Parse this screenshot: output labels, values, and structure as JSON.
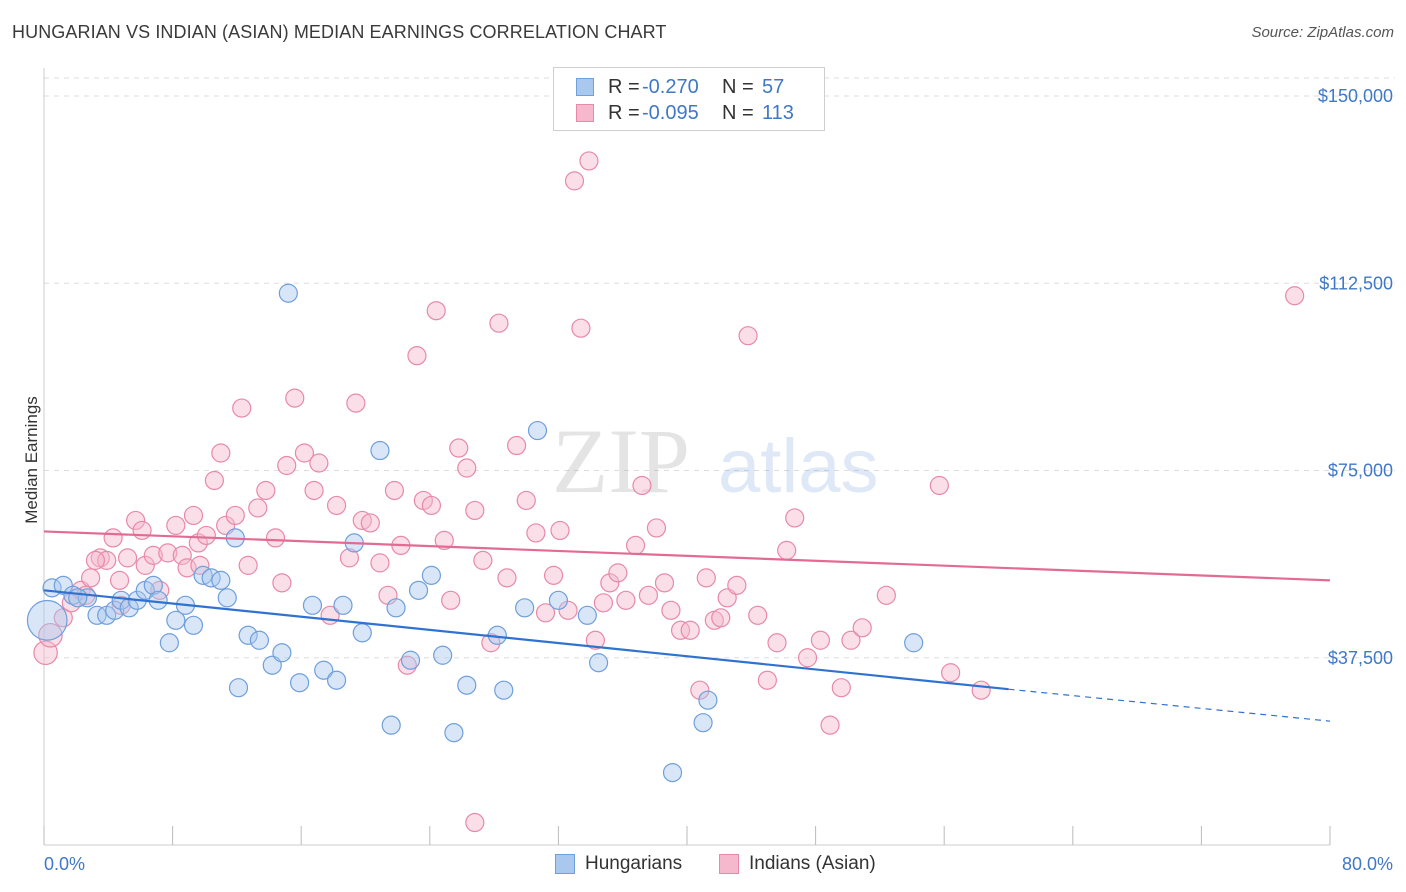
{
  "title": "HUNGARIAN VS INDIAN (ASIAN) MEDIAN EARNINGS CORRELATION CHART",
  "source": "Source: ZipAtlas.com",
  "watermark": {
    "zip": "ZIP",
    "atlas": "atlas"
  },
  "colors": {
    "blue_fill": "#a9c8ee",
    "blue_stroke": "#6f9fdc",
    "blue_line": "#2f72cf",
    "pink_fill": "#f5b8cc",
    "pink_stroke": "#e889a8",
    "pink_line": "#e26b94",
    "tick_text": "#3f78c9",
    "grid": "#dddddd"
  },
  "legend": {
    "rows": [
      {
        "r_label": "R =",
        "r_value": "-0.270",
        "n_label": "N =",
        "n_value": "57"
      },
      {
        "r_label": "R =",
        "r_value": "-0.095",
        "n_label": "N =",
        "n_value": "113"
      }
    ]
  },
  "bottom_legend": {
    "series1": "Hungarians",
    "series2": "Indians (Asian)"
  },
  "chart_data": {
    "type": "scatter",
    "title": "HUNGARIAN VS INDIAN (ASIAN) MEDIAN EARNINGS CORRELATION CHART",
    "xlabel": "",
    "ylabel": "Median Earnings",
    "xlim": [
      0,
      80
    ],
    "ylim": [
      0,
      152000
    ],
    "x_tick_labels": [
      "0.0%",
      "80.0%"
    ],
    "y_ticks": [
      37500,
      75000,
      112500,
      150000
    ],
    "y_tick_labels": [
      "$37,500",
      "$75,000",
      "$112,500",
      "$150,000"
    ],
    "grid": true,
    "series": [
      {
        "name": "Hungarians",
        "r": -0.27,
        "n": 57,
        "trend": {
          "x0": 0,
          "y0": 51000,
          "x1": 60,
          "y1": 31200,
          "dash_to_x": 80,
          "dash_to_y": 24800
        },
        "points": [
          [
            0.2,
            45000,
            2.2
          ],
          [
            0.5,
            51500,
            1
          ],
          [
            1.2,
            52000,
            1
          ],
          [
            1.8,
            50000,
            1
          ],
          [
            2.7,
            49500,
            1
          ],
          [
            3.3,
            46000,
            1
          ],
          [
            3.9,
            46000,
            1
          ],
          [
            4.4,
            47000,
            1
          ],
          [
            4.8,
            49000,
            1
          ],
          [
            5.3,
            47500,
            1
          ],
          [
            5.8,
            49000,
            1
          ],
          [
            6.3,
            51000,
            1
          ],
          [
            6.8,
            52000,
            1
          ],
          [
            7.1,
            49000,
            1
          ],
          [
            7.8,
            40500,
            1
          ],
          [
            8.2,
            45000,
            1
          ],
          [
            8.8,
            48000,
            1
          ],
          [
            9.3,
            44000,
            1
          ],
          [
            9.9,
            54000,
            1
          ],
          [
            10.4,
            53500,
            1
          ],
          [
            11.0,
            53000,
            1
          ],
          [
            11.4,
            49500,
            1
          ],
          [
            11.9,
            61500,
            1
          ],
          [
            12.1,
            31500,
            1
          ],
          [
            12.7,
            42000,
            1
          ],
          [
            13.4,
            41000,
            1
          ],
          [
            14.2,
            36000,
            1
          ],
          [
            14.8,
            38500,
            1
          ],
          [
            15.2,
            110500,
            1
          ],
          [
            15.9,
            32500,
            1
          ],
          [
            16.7,
            48000,
            1
          ],
          [
            17.4,
            35000,
            1
          ],
          [
            18.2,
            33000,
            1
          ],
          [
            18.6,
            48000,
            1
          ],
          [
            19.3,
            60500,
            1
          ],
          [
            19.8,
            42500,
            1
          ],
          [
            20.9,
            79000,
            1
          ],
          [
            21.6,
            24000,
            1
          ],
          [
            21.9,
            47500,
            1
          ],
          [
            22.8,
            37000,
            1
          ],
          [
            23.3,
            51000,
            1
          ],
          [
            24.1,
            54000,
            1
          ],
          [
            24.8,
            38000,
            1
          ],
          [
            25.5,
            22500,
            1
          ],
          [
            26.3,
            32000,
            1
          ],
          [
            28.2,
            42000,
            1
          ],
          [
            28.6,
            31000,
            1
          ],
          [
            29.9,
            47500,
            1
          ],
          [
            30.7,
            83000,
            1
          ],
          [
            32.0,
            49000,
            1
          ],
          [
            33.8,
            46000,
            1
          ],
          [
            34.5,
            36500,
            1
          ],
          [
            39.1,
            14500,
            1
          ],
          [
            41.0,
            24500,
            1
          ],
          [
            41.3,
            29000,
            1
          ],
          [
            54.1,
            40500,
            1
          ],
          [
            2.1,
            49500,
            1
          ]
        ]
      },
      {
        "name": "Indians (Asian)",
        "r": -0.095,
        "n": 113,
        "trend": {
          "x0": 0,
          "y0": 62800,
          "x1": 80,
          "y1": 53000
        },
        "points": [
          [
            0.1,
            38500,
            1.3
          ],
          [
            0.4,
            42000,
            1.3
          ],
          [
            1.2,
            45500,
            1
          ],
          [
            1.7,
            48500,
            1
          ],
          [
            2.3,
            51000,
            1
          ],
          [
            2.9,
            53500,
            1
          ],
          [
            3.5,
            57500,
            1
          ],
          [
            3.9,
            57000,
            1
          ],
          [
            4.3,
            61500,
            1
          ],
          [
            4.7,
            53000,
            1
          ],
          [
            5.2,
            57500,
            1
          ],
          [
            5.7,
            65000,
            1
          ],
          [
            6.3,
            56000,
            1
          ],
          [
            6.8,
            58000,
            1
          ],
          [
            7.2,
            51000,
            1
          ],
          [
            7.7,
            58500,
            1
          ],
          [
            8.2,
            64000,
            1
          ],
          [
            8.6,
            58000,
            1
          ],
          [
            9.3,
            66000,
            1
          ],
          [
            9.6,
            60500,
            1
          ],
          [
            10.1,
            62000,
            1
          ],
          [
            10.6,
            73000,
            1
          ],
          [
            11.0,
            78500,
            1
          ],
          [
            11.3,
            64000,
            1
          ],
          [
            11.9,
            66000,
            1
          ],
          [
            12.3,
            87500,
            1
          ],
          [
            12.7,
            56000,
            1
          ],
          [
            13.3,
            67500,
            1
          ],
          [
            13.8,
            71000,
            1
          ],
          [
            14.4,
            61500,
            1
          ],
          [
            14.8,
            52500,
            1
          ],
          [
            15.1,
            76000,
            1
          ],
          [
            15.6,
            89500,
            1
          ],
          [
            16.2,
            78500,
            1
          ],
          [
            16.8,
            71000,
            1
          ],
          [
            17.1,
            76500,
            1
          ],
          [
            17.8,
            46000,
            1
          ],
          [
            18.2,
            68000,
            1
          ],
          [
            19.0,
            57500,
            1
          ],
          [
            19.4,
            88500,
            1
          ],
          [
            19.8,
            65000,
            1
          ],
          [
            20.3,
            64500,
            1
          ],
          [
            20.9,
            56500,
            1
          ],
          [
            21.4,
            50000,
            1
          ],
          [
            21.8,
            71000,
            1
          ],
          [
            22.2,
            60000,
            1
          ],
          [
            22.6,
            36000,
            1
          ],
          [
            23.2,
            98000,
            1
          ],
          [
            23.6,
            69000,
            1
          ],
          [
            24.1,
            68000,
            1
          ],
          [
            24.4,
            107000,
            1
          ],
          [
            24.9,
            61000,
            1
          ],
          [
            25.3,
            49000,
            1
          ],
          [
            25.8,
            79500,
            1
          ],
          [
            26.3,
            75500,
            1
          ],
          [
            26.8,
            67000,
            1
          ],
          [
            27.3,
            57000,
            1
          ],
          [
            27.8,
            40500,
            1
          ],
          [
            28.3,
            104500,
            1
          ],
          [
            28.8,
            53500,
            1
          ],
          [
            29.4,
            80000,
            1
          ],
          [
            30.0,
            69000,
            1
          ],
          [
            30.6,
            62500,
            1
          ],
          [
            31.2,
            46500,
            1
          ],
          [
            31.7,
            54000,
            1
          ],
          [
            32.1,
            63000,
            1
          ],
          [
            32.6,
            47000,
            1
          ],
          [
            33.0,
            133000,
            1
          ],
          [
            33.4,
            103500,
            1
          ],
          [
            33.9,
            137000,
            1
          ],
          [
            34.3,
            41000,
            1
          ],
          [
            34.8,
            48500,
            1
          ],
          [
            35.2,
            52500,
            1
          ],
          [
            35.7,
            54500,
            1
          ],
          [
            36.2,
            49000,
            1
          ],
          [
            36.8,
            60000,
            1
          ],
          [
            37.2,
            72000,
            1
          ],
          [
            37.6,
            50000,
            1
          ],
          [
            38.1,
            63500,
            1
          ],
          [
            38.6,
            52500,
            1
          ],
          [
            39.0,
            47000,
            1
          ],
          [
            39.6,
            43000,
            1
          ],
          [
            40.2,
            43000,
            1
          ],
          [
            40.8,
            31000,
            1
          ],
          [
            41.2,
            53500,
            1
          ],
          [
            41.7,
            45000,
            1
          ],
          [
            42.1,
            45500,
            1
          ],
          [
            42.5,
            49500,
            1
          ],
          [
            43.1,
            52000,
            1
          ],
          [
            43.8,
            102000,
            1
          ],
          [
            44.4,
            46000,
            1
          ],
          [
            45.0,
            33000,
            1
          ],
          [
            45.6,
            40500,
            1
          ],
          [
            46.2,
            59000,
            1
          ],
          [
            46.7,
            65500,
            1
          ],
          [
            47.5,
            37500,
            1
          ],
          [
            48.3,
            41000,
            1
          ],
          [
            48.9,
            24000,
            1
          ],
          [
            49.6,
            31500,
            1
          ],
          [
            50.2,
            41000,
            1
          ],
          [
            50.9,
            43500,
            1
          ],
          [
            52.4,
            50000,
            1
          ],
          [
            55.7,
            72000,
            1
          ],
          [
            56.4,
            34500,
            1
          ],
          [
            58.3,
            31000,
            1
          ],
          [
            26.8,
            4500,
            1
          ],
          [
            8.9,
            55500,
            1
          ],
          [
            6.1,
            63000,
            1
          ],
          [
            9.7,
            56000,
            1
          ],
          [
            77.8,
            110000,
            1
          ],
          [
            2.6,
            50000,
            1
          ],
          [
            3.2,
            57000,
            1
          ],
          [
            4.8,
            48000,
            1
          ]
        ]
      }
    ]
  }
}
